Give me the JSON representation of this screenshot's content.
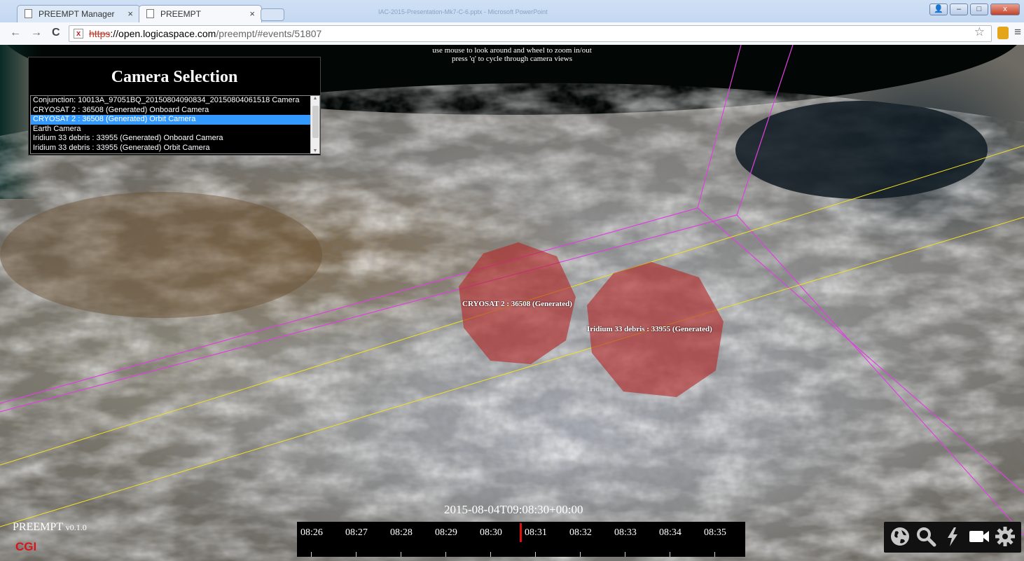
{
  "browser": {
    "tabs": [
      {
        "label": "PREEMPT Manager",
        "close": "×"
      },
      {
        "label": "PREEMPT",
        "close": "×"
      }
    ],
    "window_title": "IAC-2015-Presentation-Mk7-C-6.pptx - Microsoft PowerPoint",
    "url_scheme": "https",
    "url_host": "://open.logicaspace.com",
    "url_path": "/preempt/#events/51807",
    "nav": {
      "back": "←",
      "forward": "→",
      "reload": "C"
    },
    "window_buttons": {
      "user": "👤",
      "minimize": "–",
      "maximize": "□",
      "close": "x"
    }
  },
  "viewer": {
    "hint_line1": "use mouse to look around and wheel to zoom in/out",
    "hint_line2": "press 'q' to cycle through camera views",
    "camera_panel": {
      "title": "Camera Selection",
      "options": [
        "Conjunction: 10013A_97051BQ_20150804090834_20150804061518 Camera",
        "CRYOSAT 2 : 36508 (Generated) Onboard Camera",
        "CRYOSAT 2 : 36508 (Generated) Orbit Camera",
        "Earth Camera",
        "Iridium 33 debris : 33955 (Generated) Onboard Camera",
        "Iridium 33 debris : 33955 (Generated) Orbit Camera"
      ],
      "selected": "CRYOSAT 2 : 36508 (Generated) Orbit Camera"
    },
    "objects": [
      {
        "label": "CRYOSAT 2 : 36508 (Generated)"
      },
      {
        "label": "Iridium 33 debris : 33955 (Generated)"
      }
    ],
    "timestamp": "2015-08-04T09:08:30+00:00",
    "timeline_ticks": [
      "08:26",
      "08:27",
      "08:28",
      "08:29",
      "08:30",
      "08:31",
      "08:32",
      "08:33",
      "08:34",
      "08:35"
    ],
    "brand": {
      "name": "PREEMPT",
      "version": "v0.1.0",
      "company": "CGI"
    },
    "tools": [
      "globe-icon",
      "search-icon",
      "lightning-icon",
      "video-camera-icon",
      "gear-icon"
    ]
  },
  "colors": {
    "highlight": "#3399ff",
    "sphere": "#b42828",
    "orbit_magenta": "#e040e0",
    "orbit_yellow": "#f0e020",
    "cursor": "#e01010",
    "cgi_red": "#d9141b"
  }
}
